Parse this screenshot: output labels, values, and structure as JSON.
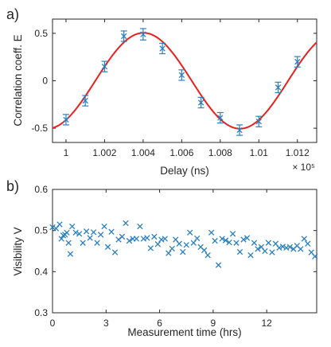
{
  "chart_data": [
    {
      "type": "scatter",
      "panel_label": "a)",
      "xlabel": "Delay (ns)",
      "ylabel": "Correlation coeff. E",
      "x_multiplier": "× 10⁵",
      "xlim": [
        0.9993,
        1.013
      ],
      "ylim": [
        -0.65,
        0.65
      ],
      "grid": false,
      "x_ticks": [
        1,
        1.002,
        1.004,
        1.006,
        1.008,
        1.01,
        1.012
      ],
      "x_tick_labels": [
        "1",
        "1.002",
        "1.004",
        "1.006",
        "1.008",
        "1.01",
        "1.012"
      ],
      "y_ticks": [
        -0.5,
        0,
        0.5
      ],
      "y_tick_labels": [
        "-0.5",
        "0",
        "0.5"
      ],
      "series": [
        {
          "style": "x-markers-with-errorbars",
          "color": "#2a7fc1",
          "x": [
            1.0,
            1.001,
            1.002,
            1.003,
            1.004,
            1.005,
            1.006,
            1.007,
            1.008,
            1.009,
            1.01,
            1.011,
            1.012
          ],
          "y": [
            -0.41,
            -0.21,
            0.15,
            0.47,
            0.49,
            0.34,
            0.06,
            -0.23,
            -0.39,
            -0.52,
            -0.43,
            -0.07,
            0.2
          ],
          "err": [
            0.055,
            0.055,
            0.055,
            0.055,
            0.06,
            0.055,
            0.055,
            0.055,
            0.055,
            0.055,
            0.055,
            0.055,
            0.055
          ]
        },
        {
          "style": "line",
          "color": "#e8201e",
          "fit": {
            "amplitude": 0.505,
            "center": 1.00402,
            "period": 0.01
          }
        }
      ]
    },
    {
      "type": "scatter",
      "panel_label": "b)",
      "xlabel": "Measurement time (hrs)",
      "ylabel": "Visibility V",
      "xlim": [
        0,
        14.8
      ],
      "ylim": [
        0.3,
        0.6
      ],
      "grid": false,
      "x_ticks": [
        0,
        3,
        6,
        9,
        12
      ],
      "x_tick_labels": [
        "0",
        "3",
        "6",
        "9",
        "12"
      ],
      "y_ticks": [
        0.3,
        0.4,
        0.5,
        0.6
      ],
      "y_tick_labels": [
        "0.3",
        "0.4",
        "0.5",
        "0.6"
      ],
      "series": [
        {
          "style": "x-markers",
          "color": "#2a7fc1",
          "x": [
            0.0,
            0.2,
            0.4,
            0.5,
            0.6,
            0.7,
            0.8,
            0.9,
            1.0,
            1.1,
            1.3,
            1.5,
            1.7,
            1.9,
            2.1,
            2.3,
            2.5,
            2.7,
            2.9,
            3.1,
            3.3,
            3.5,
            3.7,
            3.9,
            4.1,
            4.3,
            4.5,
            4.7,
            4.9,
            5.1,
            5.3,
            5.5,
            5.7,
            5.9,
            6.1,
            6.3,
            6.5,
            6.7,
            6.9,
            7.1,
            7.3,
            7.5,
            7.7,
            7.9,
            8.1,
            8.3,
            8.5,
            8.7,
            8.9,
            9.1,
            9.3,
            9.5,
            9.7,
            9.9,
            10.1,
            10.3,
            10.5,
            10.7,
            10.9,
            11.1,
            11.3,
            11.5,
            11.7,
            11.9,
            12.1,
            12.3,
            12.5,
            12.7,
            12.9,
            13.1,
            13.3,
            13.5,
            13.7,
            13.9,
            14.1,
            14.3,
            14.5,
            14.7
          ],
          "y": [
            0.508,
            0.505,
            0.515,
            0.48,
            0.488,
            0.49,
            0.495,
            0.47,
            0.443,
            0.51,
            0.495,
            0.492,
            0.47,
            0.498,
            0.482,
            0.496,
            0.47,
            0.49,
            0.51,
            0.46,
            0.497,
            0.447,
            0.478,
            0.485,
            0.518,
            0.475,
            0.48,
            0.48,
            0.51,
            0.48,
            0.482,
            0.457,
            0.485,
            0.467,
            0.478,
            0.48,
            0.445,
            0.456,
            0.478,
            0.468,
            0.448,
            0.465,
            0.495,
            0.47,
            0.481,
            0.46,
            0.452,
            0.44,
            0.495,
            0.475,
            0.416,
            0.48,
            0.476,
            0.471,
            0.492,
            0.47,
            0.448,
            0.478,
            0.482,
            0.44,
            0.47,
            0.455,
            0.46,
            0.45,
            0.47,
            0.447,
            0.468,
            0.458,
            0.461,
            0.458,
            0.46,
            0.455,
            0.463,
            0.455,
            0.48,
            0.468,
            0.447,
            0.437
          ]
        }
      ]
    }
  ]
}
